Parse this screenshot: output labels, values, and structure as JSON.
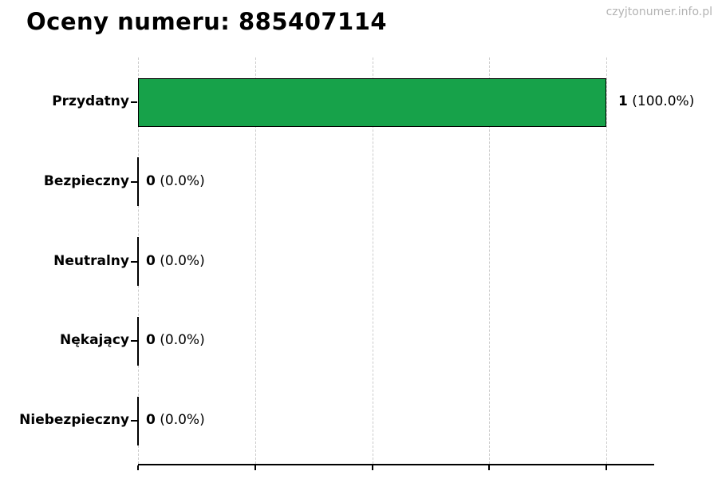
{
  "watermark": "czyjtonumer.info.pl",
  "chart_data": {
    "type": "bar",
    "orientation": "horizontal",
    "title": "Oceny numeru: 885407114",
    "categories": [
      "Przydatny",
      "Bezpieczny",
      "Neutralny",
      "Nękający",
      "Niebezpieczny"
    ],
    "values": [
      1,
      0,
      0,
      0,
      0
    ],
    "percent_labels": [
      "(100.0%)",
      "(0.0%)",
      "(0.0%)",
      "(0.0%)",
      "(0.0%)"
    ],
    "total_votes": 1,
    "value_axis_max_data": 1,
    "xlim": [
      0,
      1.1
    ],
    "x_ticks": [
      0,
      0.25,
      0.5,
      0.75,
      1.0
    ],
    "x_tick_labels_visible": false,
    "grid": "vertical-dashed",
    "legend": "none",
    "colors": {
      "bar_fill": "#17a24a",
      "bar_edge": "#000000",
      "grid_line": "#cccccc",
      "axis_line": "#000000",
      "text": "#000000",
      "watermark": "#b3b3b3"
    }
  }
}
